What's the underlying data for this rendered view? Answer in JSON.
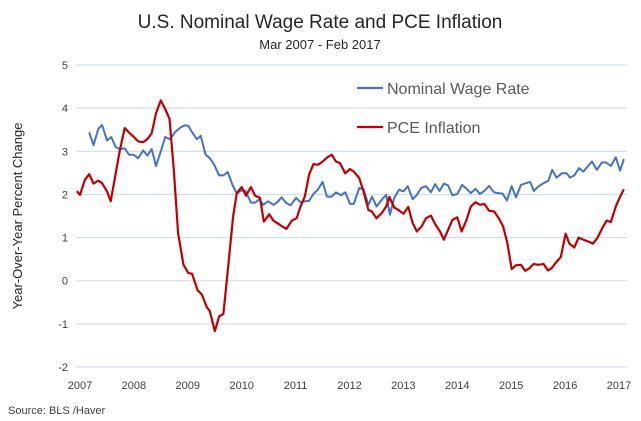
{
  "chart_data": {
    "type": "line",
    "title": "U.S. Nominal Wage Rate and PCE Inflation",
    "subtitle": "Mar 2007 - Feb 2017",
    "ylabel": "Year-Over-Year Percent Change",
    "xlabel": "",
    "xlim": [
      2007,
      2017
    ],
    "ylim": [
      -2,
      5
    ],
    "xticks": [
      "2007",
      "2008",
      "2009",
      "2010",
      "2011",
      "2012",
      "2013",
      "2014",
      "2015",
      "2016",
      "2017"
    ],
    "yticks": [
      "-2",
      "-1",
      "0",
      "1",
      "2",
      "3",
      "4",
      "5"
    ],
    "grid": true,
    "legend_position": "top-right",
    "source": "Source:  BLS /Haver",
    "series": [
      {
        "name": "Nominal Wage Rate",
        "color": "#4472c4",
        "points": [
          [
            2007.17,
            3.44
          ],
          [
            2007.25,
            3.14
          ],
          [
            2007.34,
            3.52
          ],
          [
            2007.41,
            3.61
          ],
          [
            2007.5,
            3.25
          ],
          [
            2007.58,
            3.33
          ],
          [
            2007.66,
            3.1
          ],
          [
            2007.74,
            3.05
          ],
          [
            2007.83,
            3.07
          ],
          [
            2007.91,
            2.92
          ],
          [
            2007.99,
            2.92
          ],
          [
            2008.08,
            2.84
          ],
          [
            2008.17,
            3.02
          ],
          [
            2008.25,
            2.9
          ],
          [
            2008.33,
            3.05
          ],
          [
            2008.41,
            2.66
          ],
          [
            2008.5,
            3.0
          ],
          [
            2008.58,
            3.33
          ],
          [
            2008.67,
            3.28
          ],
          [
            2008.76,
            3.44
          ],
          [
            2008.86,
            3.55
          ],
          [
            2008.94,
            3.6
          ],
          [
            2009.01,
            3.59
          ],
          [
            2009.09,
            3.42
          ],
          [
            2009.17,
            3.28
          ],
          [
            2009.24,
            3.36
          ],
          [
            2009.33,
            2.92
          ],
          [
            2009.41,
            2.84
          ],
          [
            2009.49,
            2.69
          ],
          [
            2009.58,
            2.44
          ],
          [
            2009.66,
            2.44
          ],
          [
            2009.74,
            2.52
          ],
          [
            2009.83,
            2.22
          ],
          [
            2009.91,
            2.02
          ],
          [
            2009.99,
            2.09
          ],
          [
            2010.07,
            2.08
          ],
          [
            2010.17,
            1.81
          ],
          [
            2010.25,
            1.81
          ],
          [
            2010.33,
            1.89
          ],
          [
            2010.4,
            1.76
          ],
          [
            2010.49,
            1.84
          ],
          [
            2010.59,
            1.76
          ],
          [
            2010.66,
            1.82
          ],
          [
            2010.74,
            1.93
          ],
          [
            2010.83,
            1.8
          ],
          [
            2010.91,
            1.75
          ],
          [
            2011.01,
            1.92
          ],
          [
            2011.09,
            1.82
          ],
          [
            2011.17,
            1.84
          ],
          [
            2011.25,
            1.85
          ],
          [
            2011.33,
            2.01
          ],
          [
            2011.42,
            2.12
          ],
          [
            2011.5,
            2.29
          ],
          [
            2011.58,
            1.95
          ],
          [
            2011.67,
            1.95
          ],
          [
            2011.75,
            2.05
          ],
          [
            2011.84,
            1.98
          ],
          [
            2011.92,
            2.05
          ],
          [
            2012.01,
            1.78
          ],
          [
            2012.08,
            1.78
          ],
          [
            2012.18,
            2.15
          ],
          [
            2012.26,
            2.12
          ],
          [
            2012.35,
            1.76
          ],
          [
            2012.42,
            1.95
          ],
          [
            2012.5,
            1.72
          ],
          [
            2012.6,
            1.88
          ],
          [
            2012.68,
            1.99
          ],
          [
            2012.75,
            1.53
          ],
          [
            2012.83,
            1.92
          ],
          [
            2012.92,
            2.11
          ],
          [
            2013.0,
            2.07
          ],
          [
            2013.08,
            2.19
          ],
          [
            2013.17,
            1.89
          ],
          [
            2013.25,
            1.99
          ],
          [
            2013.33,
            2.15
          ],
          [
            2013.42,
            2.19
          ],
          [
            2013.51,
            2.05
          ],
          [
            2013.59,
            2.24
          ],
          [
            2013.67,
            2.08
          ],
          [
            2013.75,
            2.25
          ],
          [
            2013.83,
            2.21
          ],
          [
            2013.91,
            1.98
          ],
          [
            2014.0,
            2.01
          ],
          [
            2014.09,
            2.22
          ],
          [
            2014.17,
            2.13
          ],
          [
            2014.25,
            2.03
          ],
          [
            2014.34,
            2.13
          ],
          [
            2014.42,
            2.01
          ],
          [
            2014.5,
            2.08
          ],
          [
            2014.59,
            2.2
          ],
          [
            2014.68,
            2.05
          ],
          [
            2014.76,
            2.03
          ],
          [
            2014.84,
            2.02
          ],
          [
            2014.92,
            1.86
          ],
          [
            2015.01,
            2.19
          ],
          [
            2015.09,
            1.93
          ],
          [
            2015.18,
            2.22
          ],
          [
            2015.27,
            2.26
          ],
          [
            2015.35,
            2.29
          ],
          [
            2015.42,
            2.08
          ],
          [
            2015.5,
            2.18
          ],
          [
            2015.6,
            2.26
          ],
          [
            2015.69,
            2.32
          ],
          [
            2015.76,
            2.57
          ],
          [
            2015.84,
            2.39
          ],
          [
            2015.94,
            2.49
          ],
          [
            2016.03,
            2.49
          ],
          [
            2016.09,
            2.39
          ],
          [
            2016.17,
            2.44
          ],
          [
            2016.26,
            2.61
          ],
          [
            2016.34,
            2.53
          ],
          [
            2016.42,
            2.65
          ],
          [
            2016.5,
            2.76
          ],
          [
            2016.59,
            2.57
          ],
          [
            2016.68,
            2.74
          ],
          [
            2016.76,
            2.74
          ],
          [
            2016.85,
            2.66
          ],
          [
            2016.94,
            2.86
          ],
          [
            2017.02,
            2.55
          ],
          [
            2017.09,
            2.82
          ]
        ]
      },
      {
        "name": "PCE Inflation",
        "color": "#c00000",
        "points": [
          [
            2006.94,
            2.08
          ],
          [
            2007.0,
            1.99
          ],
          [
            2007.09,
            2.34
          ],
          [
            2007.17,
            2.47
          ],
          [
            2007.25,
            2.25
          ],
          [
            2007.34,
            2.32
          ],
          [
            2007.41,
            2.26
          ],
          [
            2007.5,
            2.07
          ],
          [
            2007.57,
            1.84
          ],
          [
            2007.74,
            3.03
          ],
          [
            2007.83,
            3.54
          ],
          [
            2007.93,
            3.41
          ],
          [
            2008.0,
            3.33
          ],
          [
            2008.08,
            3.23
          ],
          [
            2008.17,
            3.21
          ],
          [
            2008.25,
            3.28
          ],
          [
            2008.33,
            3.42
          ],
          [
            2008.41,
            3.88
          ],
          [
            2008.5,
            4.18
          ],
          [
            2008.58,
            3.98
          ],
          [
            2008.66,
            3.75
          ],
          [
            2008.74,
            2.57
          ],
          [
            2008.82,
            1.1
          ],
          [
            2008.92,
            0.37
          ],
          [
            2009.01,
            0.18
          ],
          [
            2009.08,
            0.16
          ],
          [
            2009.18,
            -0.22
          ],
          [
            2009.26,
            -0.32
          ],
          [
            2009.35,
            -0.61
          ],
          [
            2009.41,
            -0.71
          ],
          [
            2009.5,
            -1.17
          ],
          [
            2009.58,
            -0.83
          ],
          [
            2009.66,
            -0.77
          ],
          [
            2009.75,
            0.33
          ],
          [
            2009.84,
            1.49
          ],
          [
            2009.91,
            2.03
          ],
          [
            2010.0,
            2.17
          ],
          [
            2010.08,
            1.97
          ],
          [
            2010.17,
            2.17
          ],
          [
            2010.25,
            1.97
          ],
          [
            2010.34,
            1.92
          ],
          [
            2010.41,
            1.37
          ],
          [
            2010.51,
            1.54
          ],
          [
            2010.59,
            1.39
          ],
          [
            2010.68,
            1.32
          ],
          [
            2010.75,
            1.26
          ],
          [
            2010.83,
            1.2
          ],
          [
            2010.93,
            1.39
          ],
          [
            2011.02,
            1.45
          ],
          [
            2011.09,
            1.72
          ],
          [
            2011.17,
            1.95
          ],
          [
            2011.25,
            2.46
          ],
          [
            2011.33,
            2.7
          ],
          [
            2011.42,
            2.69
          ],
          [
            2011.5,
            2.76
          ],
          [
            2011.59,
            2.86
          ],
          [
            2011.67,
            2.92
          ],
          [
            2011.75,
            2.76
          ],
          [
            2011.82,
            2.73
          ],
          [
            2011.92,
            2.49
          ],
          [
            2012.01,
            2.59
          ],
          [
            2012.08,
            2.53
          ],
          [
            2012.18,
            2.38
          ],
          [
            2012.26,
            2.07
          ],
          [
            2012.35,
            1.64
          ],
          [
            2012.41,
            1.61
          ],
          [
            2012.5,
            1.45
          ],
          [
            2012.6,
            1.57
          ],
          [
            2012.68,
            1.72
          ],
          [
            2012.74,
            1.94
          ],
          [
            2012.83,
            1.7
          ],
          [
            2012.91,
            1.64
          ],
          [
            2013.0,
            1.55
          ],
          [
            2013.09,
            1.71
          ],
          [
            2013.17,
            1.34
          ],
          [
            2013.25,
            1.14
          ],
          [
            2013.34,
            1.26
          ],
          [
            2013.42,
            1.45
          ],
          [
            2013.51,
            1.51
          ],
          [
            2013.59,
            1.31
          ],
          [
            2013.68,
            1.14
          ],
          [
            2013.75,
            0.95
          ],
          [
            2013.83,
            1.18
          ],
          [
            2013.91,
            1.41
          ],
          [
            2014.0,
            1.47
          ],
          [
            2014.08,
            1.14
          ],
          [
            2014.17,
            1.41
          ],
          [
            2014.25,
            1.72
          ],
          [
            2014.34,
            1.82
          ],
          [
            2014.42,
            1.76
          ],
          [
            2014.5,
            1.78
          ],
          [
            2014.59,
            1.62
          ],
          [
            2014.68,
            1.61
          ],
          [
            2014.77,
            1.45
          ],
          [
            2014.85,
            1.26
          ],
          [
            2014.93,
            0.87
          ],
          [
            2015.01,
            0.27
          ],
          [
            2015.09,
            0.36
          ],
          [
            2015.18,
            0.37
          ],
          [
            2015.26,
            0.23
          ],
          [
            2015.34,
            0.29
          ],
          [
            2015.42,
            0.39
          ],
          [
            2015.5,
            0.37
          ],
          [
            2015.6,
            0.39
          ],
          [
            2015.68,
            0.24
          ],
          [
            2015.75,
            0.29
          ],
          [
            2015.83,
            0.42
          ],
          [
            2015.92,
            0.55
          ],
          [
            2016.01,
            1.09
          ],
          [
            2016.08,
            0.86
          ],
          [
            2016.17,
            0.77
          ],
          [
            2016.25,
            1.0
          ],
          [
            2016.34,
            0.95
          ],
          [
            2016.43,
            0.91
          ],
          [
            2016.52,
            0.86
          ],
          [
            2016.6,
            0.99
          ],
          [
            2016.69,
            1.22
          ],
          [
            2016.77,
            1.39
          ],
          [
            2016.85,
            1.36
          ],
          [
            2016.94,
            1.72
          ],
          [
            2017.02,
            1.95
          ],
          [
            2017.09,
            2.12
          ]
        ]
      }
    ]
  }
}
